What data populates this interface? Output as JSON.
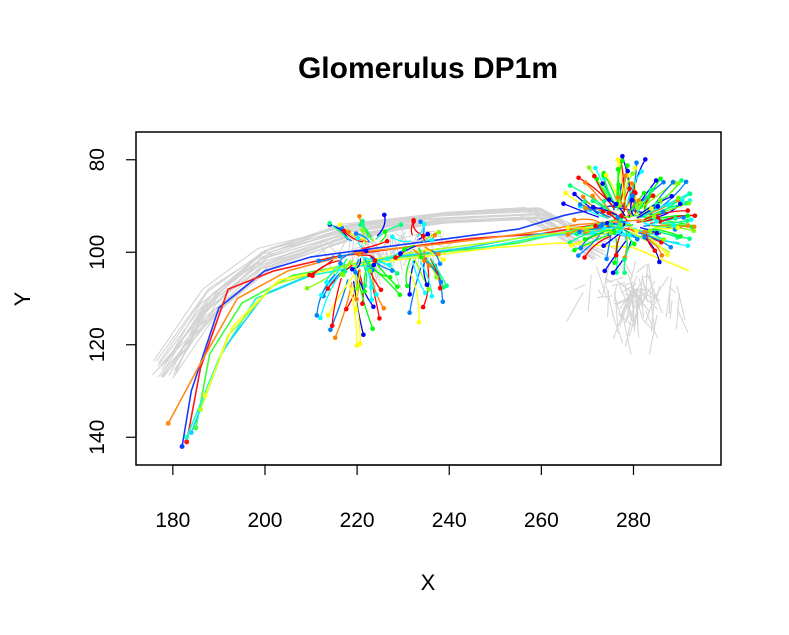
{
  "chart_data": {
    "type": "line",
    "title": "Glomerulus DP1m",
    "xlabel": "X",
    "ylabel": "Y",
    "xlim": [
      172,
      299
    ],
    "ylim": [
      146,
      74
    ],
    "y_reversed": true,
    "grid": false,
    "legend": "none",
    "x_ticks": [
      180,
      200,
      220,
      240,
      260,
      280
    ],
    "y_ticks": [
      80,
      100,
      120,
      140
    ],
    "background_color": "#d3d3d3",
    "colors": [
      "#ff0000",
      "#ff8000",
      "#ffff00",
      "#80ff00",
      "#00ff00",
      "#00ff80",
      "#00ffff",
      "#0080ff",
      "#0000ff"
    ],
    "series": [
      {
        "color": "#1a3cff",
        "values": [
          [
            182,
            142
          ],
          [
            184,
            130
          ],
          [
            190,
            112
          ],
          [
            200,
            104
          ],
          [
            210,
            101
          ],
          [
            225,
            99
          ],
          [
            240,
            97
          ],
          [
            255,
            95
          ],
          [
            265,
            92
          ],
          [
            275,
            90
          ],
          [
            285,
            92
          ]
        ]
      },
      {
        "color": "#ff1a1a",
        "values": [
          [
            183,
            141
          ],
          [
            186,
            125
          ],
          [
            192,
            108
          ],
          [
            202,
            104
          ],
          [
            215,
            101
          ],
          [
            230,
            99
          ],
          [
            245,
            97
          ],
          [
            260,
            96
          ],
          [
            272,
            94
          ],
          [
            286,
            96
          ]
        ]
      },
      {
        "color": "#ff8c1a",
        "values": [
          [
            179,
            137
          ],
          [
            186,
            124
          ],
          [
            194,
            110
          ],
          [
            205,
            104
          ],
          [
            220,
            100
          ],
          [
            240,
            98
          ],
          [
            256,
            96
          ],
          [
            268,
            94
          ],
          [
            282,
            93
          ]
        ]
      },
      {
        "color": "#3aff3a",
        "values": [
          [
            185,
            138
          ],
          [
            188,
            122
          ],
          [
            195,
            111
          ],
          [
            206,
            105
          ],
          [
            222,
            102
          ],
          [
            238,
            100
          ],
          [
            255,
            98
          ],
          [
            268,
            95
          ],
          [
            280,
            92
          ],
          [
            292,
            94
          ]
        ]
      },
      {
        "color": "#1affc8",
        "values": [
          [
            183,
            140
          ],
          [
            190,
            123
          ],
          [
            198,
            110
          ],
          [
            210,
            105
          ],
          [
            226,
            102
          ],
          [
            242,
            100
          ],
          [
            258,
            97
          ],
          [
            272,
            95
          ],
          [
            284,
            97
          ]
        ]
      },
      {
        "color": "#1ad2ff",
        "values": [
          [
            184,
            139
          ],
          [
            191,
            121
          ],
          [
            200,
            109
          ],
          [
            212,
            104
          ],
          [
            228,
            101
          ],
          [
            244,
            99
          ],
          [
            260,
            96
          ],
          [
            275,
            96
          ],
          [
            290,
            98
          ]
        ]
      },
      {
        "color": "#b4ff1a",
        "values": [
          [
            186,
            134
          ],
          [
            192,
            118
          ],
          [
            202,
            107
          ],
          [
            216,
            103
          ],
          [
            232,
            100
          ],
          [
            248,
            98
          ],
          [
            262,
            96
          ],
          [
            278,
            95
          ],
          [
            288,
            100
          ]
        ]
      },
      {
        "color": "#ffff1a",
        "values": [
          [
            187,
            131
          ],
          [
            193,
            116
          ],
          [
            203,
            106
          ],
          [
            218,
            103
          ],
          [
            234,
            101
          ],
          [
            250,
            99
          ],
          [
            264,
            98
          ],
          [
            280,
            99
          ],
          [
            292,
            104
          ]
        ]
      }
    ],
    "background_series_note": ""
  }
}
